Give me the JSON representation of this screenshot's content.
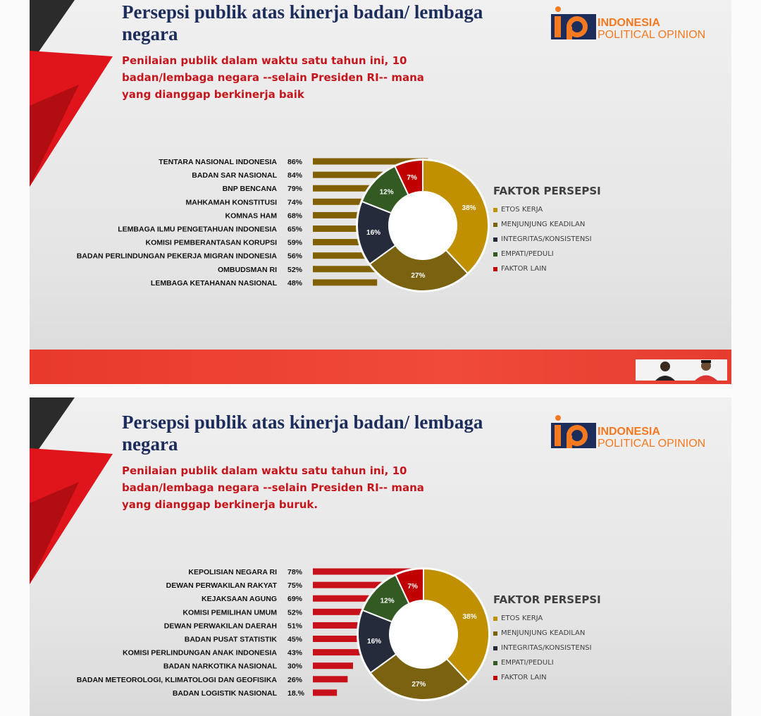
{
  "brand": {
    "logo_line1": "INDONESIA",
    "logo_line2": "POLITICAL OPINION",
    "colors": {
      "navy": "#1c2d5c",
      "red": "#c4161c",
      "orange": "#f47920"
    }
  },
  "legend": {
    "title": "FAKTOR PERSEPSI",
    "items": [
      {
        "label": "ETOS KERJA",
        "color": "#c09000"
      },
      {
        "label": "MENJUNJUNG KEADILAN",
        "color": "#7a6210"
      },
      {
        "label": "INTEGRITAS/KONSISTENSI",
        "color": "#252b3b"
      },
      {
        "label": "EMPATI/PEDULI",
        "color": "#335a23"
      },
      {
        "label": "FAKTOR LAIN",
        "color": "#c00000"
      }
    ]
  },
  "slides": [
    {
      "title": "Persepsi publik atas kinerja badan/ lembaga negara",
      "subtitle": "Penilaian publik dalam waktu satu tahun ini, 10 badan/lembaga negara --selain Presiden RI-- mana yang dianggap berkinerja baik"
    },
    {
      "title": "Persepsi publik atas kinerja badan/ lembaga negara",
      "subtitle": "Penilaian publik dalam waktu satu tahun ini, 10 badan/lembaga negara --selain Presiden RI-- mana yang dianggap berkinerja buruk."
    }
  ],
  "chart_data": [
    {
      "type": "bar",
      "orientation": "horizontal",
      "color": "#806000",
      "categories": [
        "TENTARA NASIONAL INDONESIA",
        "BADAN SAR NASIONAL",
        "BNP BENCANA",
        "MAHKAMAH KONSTITUSI",
        "KOMNAS HAM",
        "LEMBAGA ILMU PENGETAHUAN INDONESIA",
        "KOMISI PEMBERANTASAN KORUPSI",
        "BADAN PERLINDUNGAN PEKERJA MIGRAN INDONESIA",
        "OMBUDSMAN RI",
        "LEMBAGA KETAHANAN NASIONAL"
      ],
      "values": [
        86,
        84,
        79,
        74,
        68,
        65,
        59,
        56,
        52,
        48
      ],
      "value_labels": [
        "86%",
        "84%",
        "79%",
        "74%",
        "68%",
        "65%",
        "59%",
        "56%",
        "52%",
        "48%"
      ]
    },
    {
      "type": "pie",
      "donut": true,
      "categories": [
        "ETOS KERJA",
        "MENJUNJUNG KEADILAN",
        "INTEGRITAS/KONSISTENSI",
        "EMPATI/PEDULI",
        "FAKTOR LAIN"
      ],
      "values": [
        38,
        27,
        16,
        12,
        7
      ],
      "value_labels": [
        "38%",
        "27%",
        "16%",
        "12%",
        "7%"
      ]
    },
    {
      "type": "bar",
      "orientation": "horizontal",
      "color": "#c8101a",
      "categories": [
        "KEPOLISIAN NEGARA RI",
        "DEWAN PERWAKILAN RAKYAT",
        "KEJAKSAAN AGUNG",
        "KOMISI PEMILIHAN UMUM",
        "DEWAN PERWAKILAN DAERAH",
        "BADAN PUSAT STATISTIK",
        "KOMISI PERLINDUNGAN ANAK INDONESIA",
        "BADAN NARKOTIKA NASIONAL",
        "BADAN METEOROLOGI, KLIMATOLOGI DAN GEOFISIKA",
        "BADAN LOGISTIK NASIONAL"
      ],
      "values": [
        78,
        75,
        69,
        52,
        51,
        45,
        43,
        30,
        26,
        18
      ],
      "value_labels": [
        "78%",
        "75%",
        "69%",
        "52%",
        "51%",
        "45%",
        "43%",
        "30%",
        "26%",
        "18.%"
      ]
    },
    {
      "type": "pie",
      "donut": true,
      "categories": [
        "ETOS KERJA",
        "MENJUNJUNG KEADILAN",
        "INTEGRITAS/KONSISTENSI",
        "EMPATI/PEDULI",
        "FAKTOR LAIN"
      ],
      "values": [
        38,
        27,
        16,
        12,
        7
      ],
      "value_labels": [
        "38%",
        "27%",
        "16%",
        "12%",
        "7%"
      ]
    }
  ]
}
